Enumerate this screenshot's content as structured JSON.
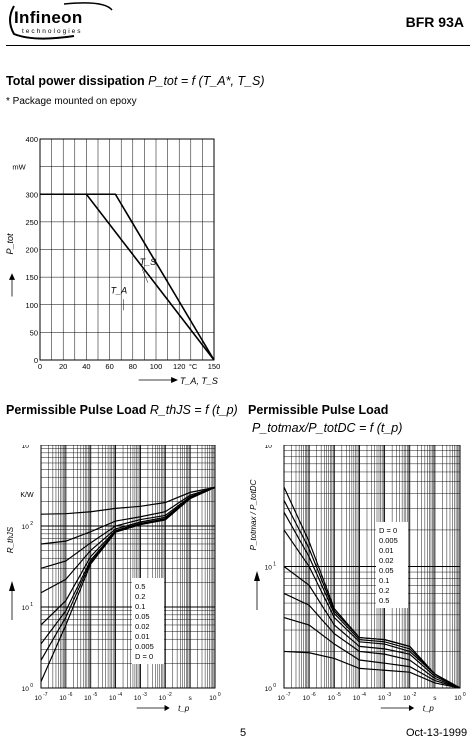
{
  "header": {
    "brand": "Infineon",
    "brand_sub": "technologies",
    "part_number": "BFR 93A"
  },
  "section1": {
    "title_main": "Total power dissipation",
    "title_formula": "P_tot = f (T_A*, T_S)",
    "note": "* Package mounted on epoxy"
  },
  "section2": {
    "title_main": "Permissible Pulse Load",
    "title_formula": "R_thJS = f (t_p)"
  },
  "section3": {
    "title_main": "Permissible Pulse Load",
    "title_formula": "P_totmax/P_totDC = f (t_p)"
  },
  "footer": {
    "page": "5",
    "date": "Oct-13-1999"
  },
  "chart_data": [
    {
      "type": "line",
      "title": "",
      "xlabel": "T_A, T_S",
      "x_unit": "°C",
      "ylabel": "P_tot",
      "y_unit": "mW",
      "xlim": [
        0,
        150
      ],
      "ylim": [
        0,
        400
      ],
      "x_ticks": [
        "0",
        "20",
        "40",
        "60",
        "80",
        "100",
        "120",
        "150"
      ],
      "y_ticks": [
        "0",
        "50",
        "100",
        "150",
        "200",
        "250",
        "300",
        "400"
      ],
      "grid": true,
      "series": [
        {
          "name": "T_S",
          "x": [
            0,
            65,
            150
          ],
          "y": [
            300,
            300,
            0
          ]
        },
        {
          "name": "T_A",
          "x": [
            0,
            40,
            150
          ],
          "y": [
            300,
            300,
            0
          ]
        }
      ]
    },
    {
      "type": "line",
      "title": "",
      "xlabel": "t_p",
      "x_unit": "s",
      "ylabel": "R_thJS",
      "y_unit": "K/W",
      "x_scale": "log",
      "y_scale": "log",
      "xlim": [
        1e-07,
        1
      ],
      "ylim": [
        1,
        1000
      ],
      "x_ticks": [
        "10^-7",
        "10^-6",
        "10^-5",
        "10^-4",
        "10^-3",
        "10^-2",
        "s",
        "10^0"
      ],
      "y_ticks": [
        "10^0",
        "10^1",
        "10^2",
        "10^3"
      ],
      "grid": true,
      "legend_labels": [
        "0.5",
        "0.2",
        "0.1",
        "0.05",
        "0.02",
        "0.01",
        "0.005",
        "D = 0"
      ],
      "series": [
        {
          "name": "0.5",
          "x": [
            1e-07,
            1e-06,
            1e-05,
            0.0001,
            0.001,
            0.01,
            0.1,
            1
          ],
          "y": [
            140,
            142,
            150,
            165,
            175,
            195,
            260,
            300
          ]
        },
        {
          "name": "0.2",
          "x": [
            1e-07,
            1e-06,
            1e-05,
            0.0001,
            0.001,
            0.01,
            0.1,
            1
          ],
          "y": [
            60,
            65,
            85,
            115,
            130,
            150,
            240,
            300
          ]
        },
        {
          "name": "0.1",
          "x": [
            1e-07,
            1e-06,
            1e-05,
            0.0001,
            0.001,
            0.01,
            0.1,
            1
          ],
          "y": [
            30,
            37,
            62,
            100,
            120,
            135,
            230,
            300
          ]
        },
        {
          "name": "0.05",
          "x": [
            1e-07,
            1e-06,
            1e-05,
            0.0001,
            0.001,
            0.01,
            0.1,
            1
          ],
          "y": [
            15,
            22,
            50,
            92,
            112,
            128,
            225,
            300
          ]
        },
        {
          "name": "0.02",
          "x": [
            1e-07,
            1e-06,
            1e-05,
            0.0001,
            0.001,
            0.01,
            0.1,
            1
          ],
          "y": [
            6,
            12,
            42,
            88,
            108,
            123,
            222,
            300
          ]
        },
        {
          "name": "0.01",
          "x": [
            1e-07,
            1e-06,
            1e-05,
            0.0001,
            0.001,
            0.01,
            0.1,
            1
          ],
          "y": [
            3.5,
            9,
            38,
            86,
            106,
            121,
            220,
            300
          ]
        },
        {
          "name": "0.005",
          "x": [
            1e-07,
            1e-06,
            1e-05,
            0.0001,
            0.001,
            0.01,
            0.1,
            1
          ],
          "y": [
            2.2,
            7.5,
            36,
            85,
            105,
            120,
            219,
            300
          ]
        },
        {
          "name": "D = 0",
          "x": [
            1e-07,
            1e-06,
            1e-05,
            0.0001,
            0.001,
            0.01,
            0.1,
            1
          ],
          "y": [
            1.2,
            6,
            34,
            84,
            104,
            119,
            218,
            300
          ]
        }
      ]
    },
    {
      "type": "line",
      "title": "",
      "xlabel": "t_p",
      "x_unit": "s",
      "ylabel": "P_totmax / P_totDC",
      "x_scale": "log",
      "y_scale": "log",
      "xlim": [
        1e-07,
        1
      ],
      "ylim": [
        1,
        100
      ],
      "x_ticks": [
        "10^-7",
        "10^-6",
        "10^-5",
        "10^-4",
        "10^-3",
        "10^-2",
        "s",
        "10^0"
      ],
      "y_ticks": [
        "10^0",
        "10^1",
        "10^2"
      ],
      "grid": true,
      "legend_labels": [
        "D = 0",
        "0.005",
        "0.01",
        "0.02",
        "0.05",
        "0.1",
        "0.2",
        "0.5"
      ],
      "series": [
        {
          "name": "D = 0",
          "x": [
            1e-07,
            1e-06,
            1e-05,
            0.0001,
            0.001,
            0.01,
            0.1,
            1
          ],
          "y": [
            45,
            16,
            4.5,
            2.6,
            2.5,
            2.2,
            1.3,
            1
          ]
        },
        {
          "name": "0.005",
          "x": [
            1e-07,
            1e-06,
            1e-05,
            0.0001,
            0.001,
            0.01,
            0.1,
            1
          ],
          "y": [
            35,
            14,
            4.3,
            2.6,
            2.5,
            2.2,
            1.3,
            1
          ]
        },
        {
          "name": "0.01",
          "x": [
            1e-07,
            1e-06,
            1e-05,
            0.0001,
            0.001,
            0.01,
            0.1,
            1
          ],
          "y": [
            28,
            12,
            4.1,
            2.5,
            2.4,
            2.1,
            1.3,
            1
          ]
        },
        {
          "name": "0.02",
          "x": [
            1e-07,
            1e-06,
            1e-05,
            0.0001,
            0.001,
            0.01,
            0.1,
            1
          ],
          "y": [
            20,
            10,
            3.8,
            2.4,
            2.3,
            2.0,
            1.3,
            1
          ]
        },
        {
          "name": "0.05",
          "x": [
            1e-07,
            1e-06,
            1e-05,
            0.0001,
            0.001,
            0.01,
            0.1,
            1
          ],
          "y": [
            10,
            7,
            3.3,
            2.2,
            2.1,
            1.9,
            1.25,
            1
          ]
        },
        {
          "name": "0.1",
          "x": [
            1e-07,
            1e-06,
            1e-05,
            0.0001,
            0.001,
            0.01,
            0.1,
            1
          ],
          "y": [
            6,
            4.8,
            2.8,
            2.0,
            1.9,
            1.7,
            1.2,
            1
          ]
        },
        {
          "name": "0.2",
          "x": [
            1e-07,
            1e-06,
            1e-05,
            0.0001,
            0.001,
            0.01,
            0.1,
            1
          ],
          "y": [
            3.8,
            3.3,
            2.3,
            1.7,
            1.6,
            1.5,
            1.15,
            1
          ]
        },
        {
          "name": "0.5",
          "x": [
            1e-07,
            1e-06,
            1e-05,
            0.0001,
            0.001,
            0.01,
            0.1,
            1
          ],
          "y": [
            2.0,
            1.95,
            1.75,
            1.45,
            1.4,
            1.35,
            1.1,
            1
          ]
        }
      ]
    }
  ]
}
